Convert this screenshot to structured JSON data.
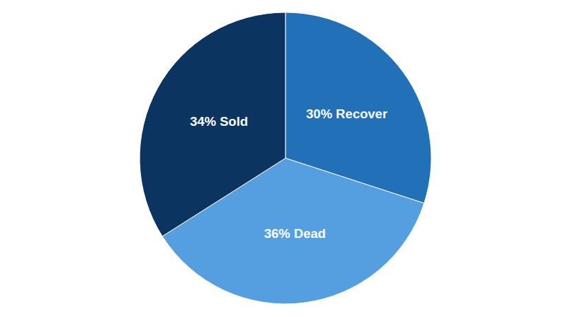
{
  "chart_data": {
    "type": "pie",
    "categories": [
      "Recover",
      "Dead",
      "Sold"
    ],
    "values": [
      30,
      36,
      34
    ],
    "value_labels": [
      "30% Recover",
      "36% Dead",
      "34% Sold"
    ],
    "colors": [
      "#2270b8",
      "#559fe0",
      "#0b3560"
    ],
    "data_labels": true
  }
}
